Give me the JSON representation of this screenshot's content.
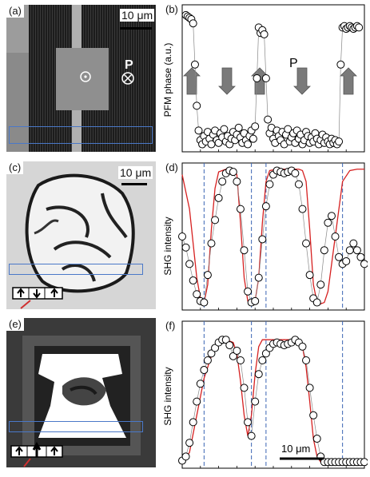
{
  "panels": {
    "a": {
      "label": "(a)",
      "scale": "10 μm",
      "polarization_label": "P"
    },
    "b": {
      "label": "(b)",
      "ylabel": "PFM phase (a.u.)",
      "polarization_label": "P"
    },
    "c": {
      "label": "(c)",
      "scale": "10 μm"
    },
    "d": {
      "label": "(d)",
      "ylabel": "SHG intensity"
    },
    "e": {
      "label": "(e)"
    },
    "f": {
      "label": "(f)",
      "ylabel": "SHG intensity",
      "scale": "10 μm"
    }
  },
  "colors": {
    "fit": "#d62020",
    "dashed": "#3a64b4",
    "box": "#4a78c8",
    "arrow": "#7a7a7a"
  },
  "chart_data": [
    {
      "panel": "b",
      "type": "scatter",
      "ylabel": "PFM phase (a.u.)",
      "xlim": [
        0,
        100
      ],
      "ylim": [
        0,
        1
      ],
      "series": [
        {
          "x": [
            2,
            3,
            4,
            5,
            6,
            7,
            8,
            9,
            10,
            11,
            12,
            13,
            14,
            15,
            16,
            17,
            18,
            19,
            20,
            21,
            22,
            23,
            24,
            25,
            26,
            27,
            28,
            29,
            30,
            31,
            32,
            33,
            34,
            35,
            36,
            37,
            38,
            39,
            40,
            41,
            42,
            43,
            44,
            45,
            46,
            47,
            48,
            49,
            50,
            51,
            52,
            53,
            54,
            55,
            56,
            57,
            58,
            59,
            60,
            61,
            62,
            63,
            64,
            65,
            66,
            67,
            68,
            69,
            70,
            71,
            72,
            73,
            74,
            75,
            76,
            77,
            78,
            79,
            80,
            81,
            82,
            83,
            84,
            85,
            86,
            87,
            88,
            89,
            90,
            91,
            92,
            93,
            94,
            95,
            96,
            97
          ],
          "y": [
            0.96,
            0.95,
            0.94,
            0.93,
            0.9,
            0.6,
            0.3,
            0.12,
            0.05,
            0.02,
            0.08,
            0.04,
            0.11,
            0.06,
            0.02,
            0.09,
            0.12,
            0.05,
            0.03,
            0.1,
            0.07,
            0.13,
            0.04,
            0.08,
            0.02,
            0.06,
            0.11,
            0.05,
            0.09,
            0.14,
            0.07,
            0.03,
            0.1,
            0.05,
            0.02,
            0.08,
            0.12,
            0.06,
            0.15,
            0.5,
            0.87,
            0.83,
            0.85,
            0.82,
            0.5,
            0.2,
            0.1,
            0.14,
            0.06,
            0.03,
            0.12,
            0.08,
            0.05,
            0.11,
            0.02,
            0.09,
            0.13,
            0.04,
            0.07,
            0.1,
            0.03,
            0.12,
            0.06,
            0.09,
            0.02,
            0.05,
            0.11,
            0.08,
            0.03,
            0.07,
            0.04,
            0.1,
            0.06,
            0.02,
            0.05,
            0.09,
            0.03,
            0.07,
            0.04,
            0.02,
            0.06,
            0.03,
            0.05,
            0.02,
            0.04,
            0.6,
            0.87,
            0.88,
            0.86,
            0.87,
            0.88,
            0.87,
            0.86,
            0.87,
            0.88,
            0.87
          ]
        }
      ]
    },
    {
      "panel": "d",
      "type": "scatter",
      "ylabel": "SHG intensity",
      "xlim": [
        0,
        100
      ],
      "ylim": [
        0,
        1
      ],
      "series": [
        {
          "name": "data",
          "x": [
            0,
            2,
            4,
            6,
            8,
            10,
            12,
            14,
            16,
            18,
            20,
            22,
            24,
            26,
            28,
            30,
            32,
            34,
            36,
            38,
            40,
            42,
            44,
            46,
            48,
            50,
            52,
            54,
            56,
            58,
            60,
            62,
            64,
            66,
            68,
            70,
            72,
            74,
            76,
            78,
            80,
            82,
            84,
            86,
            88,
            90,
            92,
            94,
            96,
            98,
            100
          ],
          "y": [
            0.5,
            0.42,
            0.3,
            0.18,
            0.08,
            0.03,
            0.02,
            0.22,
            0.45,
            0.62,
            0.78,
            0.9,
            0.96,
            0.98,
            0.97,
            0.9,
            0.7,
            0.4,
            0.1,
            0.02,
            0.03,
            0.2,
            0.48,
            0.72,
            0.88,
            0.95,
            0.98,
            0.97,
            0.96,
            0.97,
            0.98,
            0.96,
            0.88,
            0.7,
            0.45,
            0.22,
            0.05,
            0.02,
            0.15,
            0.4,
            0.6,
            0.65,
            0.5,
            0.35,
            0.3,
            0.32,
            0.4,
            0.45,
            0.4,
            0.35,
            0.3
          ]
        },
        {
          "name": "fit",
          "x": [
            0,
            4,
            8,
            10,
            12,
            14,
            16,
            18,
            20,
            24,
            28,
            30,
            32,
            34,
            36,
            38,
            40,
            42,
            44,
            46,
            48,
            52,
            56,
            60,
            64,
            66,
            68,
            70,
            72,
            74,
            76,
            78,
            80,
            84,
            88,
            92,
            96,
            100
          ],
          "y": [
            0.95,
            0.7,
            0.2,
            0.05,
            0.02,
            0.15,
            0.55,
            0.85,
            0.97,
            0.99,
            0.99,
            0.95,
            0.6,
            0.2,
            0.03,
            0.01,
            0.03,
            0.2,
            0.6,
            0.9,
            0.98,
            0.99,
            0.99,
            0.99,
            0.99,
            0.98,
            0.9,
            0.55,
            0.15,
            0.02,
            0.01,
            0.02,
            0.1,
            0.5,
            0.9,
            0.98,
            0.99,
            0.99
          ]
        }
      ]
    },
    {
      "panel": "f",
      "type": "scatter",
      "ylabel": "SHG intensity",
      "xlim": [
        0,
        100
      ],
      "ylim": [
        0,
        1
      ],
      "series": [
        {
          "name": "data",
          "x": [
            0,
            2,
            4,
            6,
            8,
            10,
            12,
            14,
            16,
            18,
            20,
            22,
            24,
            26,
            28,
            30,
            32,
            34,
            36,
            38,
            40,
            42,
            44,
            46,
            48,
            50,
            52,
            54,
            56,
            58,
            60,
            62,
            64,
            66,
            68,
            70,
            72,
            74,
            76,
            78,
            80,
            82,
            84,
            86,
            88,
            90,
            92,
            94,
            96,
            98,
            100
          ],
          "y": [
            0.02,
            0.05,
            0.15,
            0.3,
            0.45,
            0.58,
            0.68,
            0.75,
            0.8,
            0.84,
            0.88,
            0.9,
            0.9,
            0.86,
            0.78,
            0.82,
            0.75,
            0.55,
            0.3,
            0.2,
            0.45,
            0.65,
            0.75,
            0.8,
            0.84,
            0.87,
            0.88,
            0.87,
            0.86,
            0.87,
            0.88,
            0.9,
            0.88,
            0.85,
            0.75,
            0.55,
            0.35,
            0.18,
            0.05,
            0.01,
            0.01,
            0.01,
            0.01,
            0.01,
            0.01,
            0.01,
            0.01,
            0.01,
            0.01,
            0.01,
            0.01
          ]
        },
        {
          "name": "fit",
          "x": [
            0,
            4,
            8,
            12,
            16,
            20,
            24,
            28,
            30,
            32,
            34,
            36,
            38,
            40,
            42,
            44,
            48,
            52,
            56,
            60,
            64,
            66,
            68,
            70,
            72,
            74,
            76,
            78,
            80,
            84,
            88,
            92,
            96,
            100
          ],
          "y": [
            0.01,
            0.08,
            0.35,
            0.62,
            0.78,
            0.87,
            0.9,
            0.88,
            0.8,
            0.6,
            0.35,
            0.2,
            0.35,
            0.65,
            0.85,
            0.9,
            0.9,
            0.9,
            0.9,
            0.9,
            0.9,
            0.85,
            0.7,
            0.45,
            0.18,
            0.05,
            0.01,
            0.01,
            0.01,
            0.01,
            0.01,
            0.01,
            0.01,
            0.01
          ]
        }
      ]
    }
  ]
}
